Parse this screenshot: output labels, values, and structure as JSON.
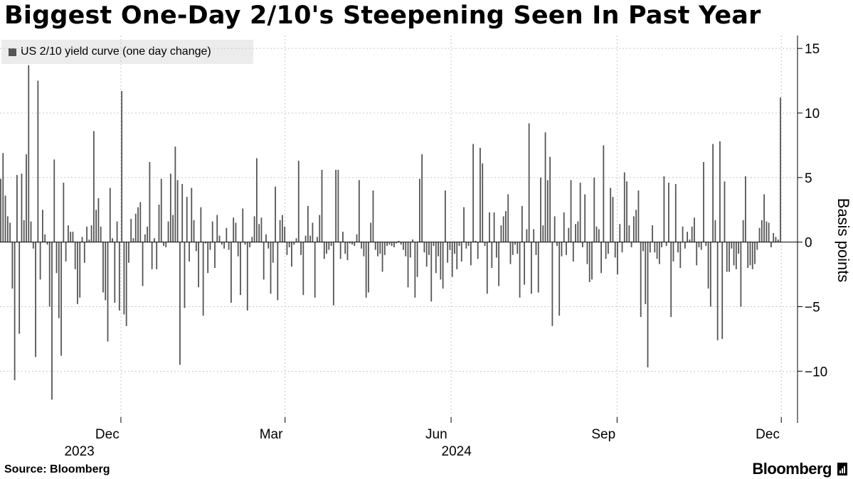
{
  "header": {
    "title": "Biggest One-Day 2/10's Steepening Seen In Past Year"
  },
  "legend": {
    "label": "US 2/10 yield curve (one day change)"
  },
  "footer": {
    "source": "Source: Bloomberg",
    "brand": "Bloomberg"
  },
  "colors": {
    "bar": "#555555",
    "grid": "#c8c8c8",
    "axis": "#000000"
  },
  "chart_data": {
    "type": "bar",
    "title": "Biggest One-Day 2/10's Steepening Seen In Past Year",
    "ylabel": "Basis points",
    "ylim": [
      -14,
      16
    ],
    "y_ticks": [
      15,
      10,
      5,
      0,
      -5,
      -10
    ],
    "x_ticks": [
      {
        "label": "Dec",
        "date": "2023-12-01"
      },
      {
        "label": "Mar",
        "date": "2024-03-01"
      },
      {
        "label": "Jun",
        "date": "2024-06-01"
      },
      {
        "label": "Sep",
        "date": "2024-09-01"
      },
      {
        "label": "Dec",
        "date": "2024-12-01"
      }
    ],
    "year_labels": [
      {
        "label": "2023",
        "date": "2023-11-08"
      },
      {
        "label": "2024",
        "date": "2024-06-04"
      }
    ],
    "x_start": "2023-09-25",
    "x_end": "2024-12-10",
    "grid": true,
    "legend_position": "top-left",
    "series": [
      {
        "name": "US 2/10 yield curve (one day change)",
        "frequency": "business-daily",
        "values": [
          4.9,
          6.9,
          3.6,
          2.0,
          1.5,
          -3.6,
          -10.7,
          5.2,
          -7.1,
          5.3,
          1.7,
          6.8,
          13.7,
          1.6,
          -0.5,
          -8.9,
          12.5,
          -2.9,
          2.5,
          0.6,
          -0.2,
          -5.0,
          -12.2,
          6.4,
          -2.4,
          -5.9,
          -8.8,
          4.6,
          -1.5,
          1.3,
          0.8,
          0.8,
          -2.1,
          -4.8,
          -4.3,
          0.4,
          -1.6,
          1.2,
          0.2,
          1.3,
          8.6,
          2.5,
          3.4,
          1.2,
          -3.9,
          -4.5,
          -7.7,
          4.2,
          0.3,
          -4.7,
          1.6,
          -5.3,
          11.7,
          -5.6,
          -6.5,
          -1.6,
          1.8,
          0.3,
          2.2,
          2.7,
          3.1,
          -3.4,
          0.6,
          1.2,
          6.2,
          -2.1,
          0.3,
          -2.1,
          2.9,
          4.9,
          -0.3,
          -0.4,
          1.6,
          5.3,
          2.1,
          7.4,
          4.8,
          -9.5,
          4.5,
          -5.1,
          3.5,
          -1.5,
          4.2,
          1.7,
          -0.7,
          -3.5,
          2.7,
          -5.7,
          -0.1,
          -2.4,
          -0.6,
          1.6,
          -2.0,
          2.1,
          0.5,
          -0.2,
          -0.5,
          1.1,
          -0.6,
          -4.7,
          1.9,
          1.5,
          -1.1,
          -4.1,
          2.6,
          -0.2,
          -5.3,
          -0.4,
          0.4,
          2.0,
          6.5,
          1.4,
          1.9,
          -2.9,
          0.6,
          -0.5,
          -4.0,
          -1.6,
          4.3,
          -4.5,
          1.7,
          2.1,
          1.2,
          -1.0,
          -0.4,
          -1.9,
          -0.2,
          0.3,
          6.3,
          -1.0,
          -4.1,
          0.5,
          2.8,
          0.5,
          1.5,
          -4.3,
          0.4,
          2.1,
          5.6,
          -1.3,
          -0.9,
          -0.6,
          -0.3,
          -4.9,
          5.6,
          5.6,
          -1.3,
          0.8,
          -0.9,
          -1.4,
          -0.1,
          -0.2,
          -0.3,
          0.6,
          4.8,
          -0.5,
          -1.1,
          -4.3,
          -3.9,
          1.5,
          4.0,
          -0.6,
          -1.1,
          -0.9,
          -2.3,
          -1.0,
          -0.3,
          -0.2,
          -0.3,
          -0.4,
          -0.1,
          0.1,
          -0.2,
          -0.6,
          -1.1,
          -3.5,
          -1.2,
          0.2,
          -4.3,
          -2.7,
          4.9,
          6.8,
          -0.8,
          -1.9,
          -1.0,
          -4.6,
          -0.3,
          -2.4,
          -1.1,
          -2.9,
          -3.6,
          4.0,
          -1.6,
          -0.6,
          -2.7,
          -0.9,
          -2.1,
          -0.3,
          -1.5,
          2.7,
          -0.5,
          -0.3,
          -1.8,
          7.6,
          0.1,
          -1.3,
          7.3,
          6.1,
          -0.3,
          -4.0,
          2.3,
          -2.0,
          2.3,
          -1.2,
          -3.4,
          1.3,
          2.0,
          2.4,
          3.7,
          -1.7,
          -1.0,
          -0.2,
          -0.9,
          -4.3,
          2.8,
          -3.3,
          1.0,
          9.2,
          -4.0,
          1.0,
          -1.0,
          -3.9,
          5.0,
          1.3,
          8.5,
          4.8,
          6.6,
          -6.5,
          2.0,
          -0.3,
          -5.7,
          -1.1,
          2.3,
          -1.0,
          1.1,
          4.8,
          -1.5,
          1.4,
          1.6,
          4.6,
          -0.4,
          3.7,
          -1.7,
          -3.1,
          -2.9,
          5.0,
          1.2,
          1.0,
          -2.4,
          7.5,
          -1.3,
          -0.9,
          4.2,
          3.5,
          -1.2,
          -2.5,
          1.4,
          -0.8,
          5.4,
          4.7,
          1.3,
          -0.4,
          2.0,
          2.5,
          4.0,
          -5.8,
          -0.7,
          -4.8,
          -9.7,
          -0.8,
          1.3,
          -0.8,
          -1.3,
          -1.7,
          -0.4,
          5.1,
          -0.3,
          4.6,
          -5.8,
          -1.5,
          4.5,
          -0.8,
          -2.0,
          1.2,
          -0.5,
          0.8,
          0.2,
          1.2,
          1.9,
          -1.8,
          -0.4,
          -0.6,
          6.2,
          -0.3,
          -3.6,
          -5.0,
          7.6,
          1.7,
          -7.6,
          7.8,
          -7.5,
          4.7,
          -2.3,
          -2.3,
          -0.5,
          -1.8,
          -2.1,
          -0.9,
          -5.0,
          1.7,
          5.1,
          -2.0,
          -1.8,
          -2.1,
          -1.7,
          -0.6,
          1.1,
          1.7,
          3.7,
          1.6,
          1.5,
          -0.4,
          0.7,
          0.4,
          0.2,
          11.2
        ]
      }
    ]
  }
}
